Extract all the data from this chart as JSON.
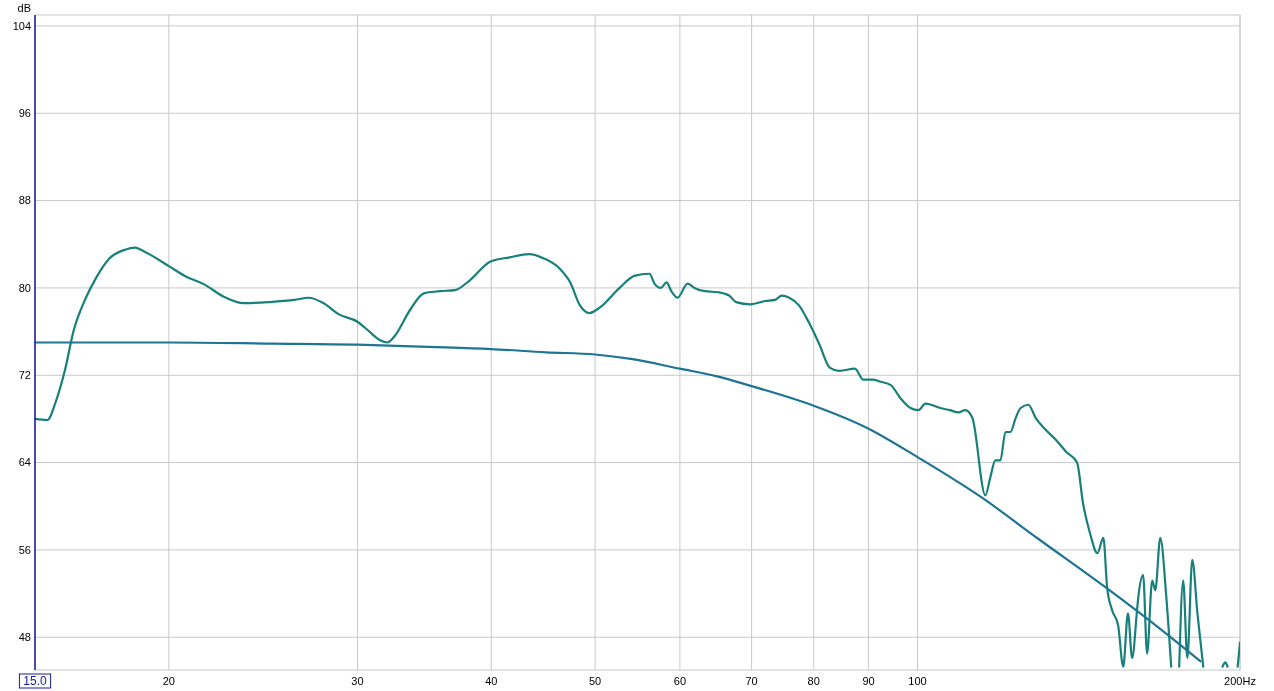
{
  "chart_data": {
    "type": "line",
    "ylabel": "dB",
    "log": "x",
    "grid": true,
    "xlim": [
      15,
      200
    ],
    "ylim": [
      45,
      105
    ],
    "xticks": [
      {
        "value": 15,
        "label": "15.0"
      },
      20,
      30,
      40,
      50,
      60,
      70,
      80,
      90,
      100,
      {
        "value": 200,
        "label": "200Hz"
      }
    ],
    "yticks": [
      48,
      56,
      64,
      72,
      80,
      88,
      96,
      104
    ],
    "series": [
      {
        "color": "#18807a",
        "x": [
          15.0,
          15.4,
          15.7,
          16.0,
          16.3,
          16.7,
          17.1,
          17.6,
          18.2,
          18.6,
          19.0,
          20.0,
          20.7,
          21.6,
          22.5,
          23.5,
          24.8,
          26.2,
          27.0,
          27.9,
          28.8,
          30.0,
          30.7,
          31.5,
          32.0,
          32.5,
          33.6,
          34.6,
          35.8,
          37.0,
          38.2,
          39.9,
          41.6,
          43.4,
          44.8,
          46.3,
          47.4,
          48.4,
          49.4,
          50.5,
          52.7,
          54.4,
          56.2,
          56.8,
          57.6,
          58.3,
          58.9,
          59.7,
          61.0,
          61.9,
          63.3,
          65.2,
          66.7,
          67.7,
          69.8,
          72.1,
          73.6,
          74.7,
          75.9,
          77.5,
          79.2,
          81.0,
          82.8,
          84.5,
          87.4,
          89.0,
          90.8,
          92.4,
          94.4,
          96.4,
          98.5,
          100.2,
          101.7,
          105.0,
          107.2,
          109.2,
          110.8,
          112.5,
          115.7,
          116.9,
          118.2,
          119.5,
          120.8,
          122.1,
          123.5,
          124.8,
          126.9,
          128.9,
          131.7,
          134.6,
          137.6,
          140.9,
          142.7,
          144.9,
          147.2,
          149.1,
          150.3,
          151.9,
          153.9,
          155.6,
          157.2,
          158.6,
          160.3,
          160.7,
          162.4,
          163.8,
          165.6,
          166.7,
          168.5,
          170.7,
          172.5,
          174.0,
          175.5,
          177.0,
          178.6,
          180.5,
          182.5,
          184.8,
          188.0,
          192.6,
          193.8,
          194.7,
          197.0,
          199.0,
          200.0
        ],
        "values": [
          68.0,
          67.9,
          69.7,
          72.5,
          76.1,
          78.9,
          80.9,
          82.7,
          83.5,
          83.7,
          83.3,
          82.0,
          81.1,
          80.3,
          79.2,
          78.6,
          78.7,
          78.9,
          79.1,
          78.6,
          77.6,
          76.9,
          76.1,
          75.2,
          75.0,
          75.6,
          78.0,
          79.5,
          79.7,
          79.8,
          80.7,
          82.4,
          82.8,
          83.1,
          82.7,
          81.8,
          80.5,
          78.4,
          77.7,
          78.2,
          80.0,
          81.1,
          81.3,
          80.4,
          80.0,
          80.5,
          79.7,
          79.1,
          80.4,
          80.0,
          79.7,
          79.6,
          79.3,
          78.7,
          78.5,
          78.8,
          78.9,
          79.3,
          79.1,
          78.4,
          76.8,
          74.8,
          72.7,
          72.4,
          72.6,
          71.6,
          71.6,
          71.4,
          71.1,
          69.9,
          69.0,
          68.8,
          69.4,
          69.0,
          68.8,
          68.6,
          68.8,
          68.1,
          61.0,
          62.6,
          64.2,
          64.2,
          66.8,
          66.8,
          68.1,
          69.0,
          69.3,
          68.1,
          67.0,
          66.1,
          65.0,
          64.0,
          60.3,
          57.5,
          55.7,
          57.1,
          52.6,
          50.5,
          49.1,
          45.3,
          50.2,
          46.1,
          50.5,
          51.6,
          53.7,
          46.5,
          53.2,
          52.3,
          57.1,
          51.7,
          45.3,
          null,
          45.3,
          53.2,
          46.1,
          55.1,
          50.2,
          45.3,
          null,
          45.3,
          45.7,
          45.3,
          null,
          45.3,
          47.5
        ]
      },
      {
        "color": "#1d7493",
        "x": [
          15,
          20,
          25,
          30,
          35,
          40,
          45,
          50,
          54,
          60,
          65,
          70,
          80,
          90,
          100,
          114.4,
          129.7,
          149.2,
          168.8,
          183.7
        ],
        "values": [
          75.0,
          75.0,
          74.9,
          74.8,
          74.6,
          74.4,
          74.1,
          73.9,
          73.5,
          72.6,
          71.9,
          71.0,
          69.2,
          67.1,
          64.5,
          60.9,
          57.0,
          52.7,
          48.7,
          45.8
        ]
      }
    ]
  }
}
